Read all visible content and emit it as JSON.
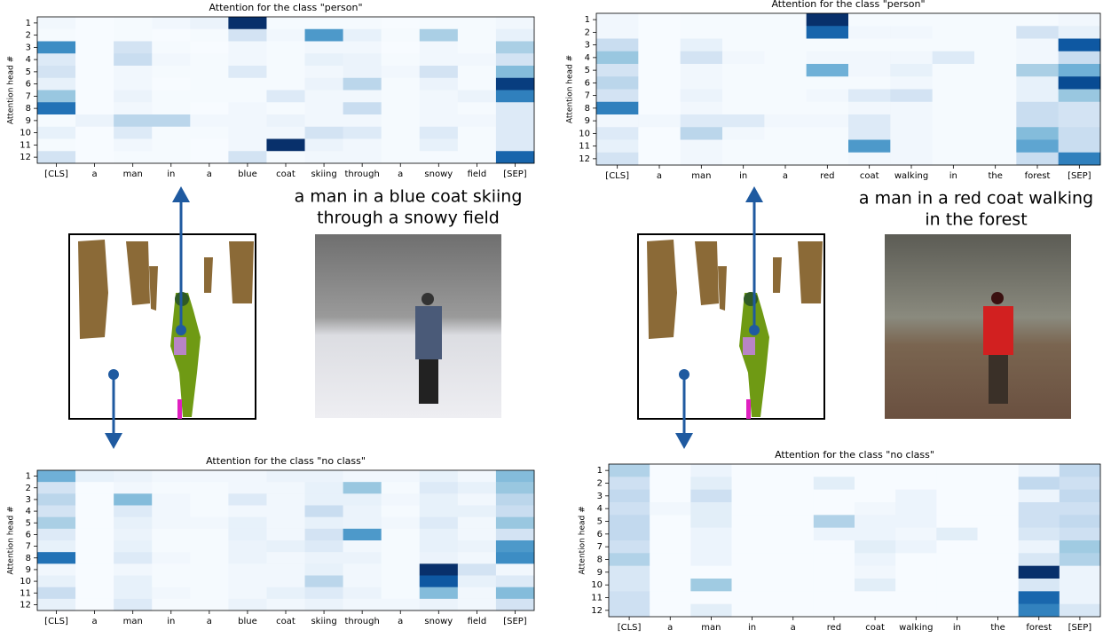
{
  "chart_data": [
    {
      "type": "heatmap",
      "title": "Attention for the class \"person\"",
      "ylabel": "Attention head #",
      "categories": [
        "[CLS]",
        "a",
        "man",
        "in",
        "a",
        "blue",
        "coat",
        "skiing",
        "through",
        "a",
        "snowy",
        "field",
        "[SEP]"
      ],
      "rows": [
        1,
        2,
        3,
        4,
        5,
        6,
        7,
        8,
        9,
        10,
        11,
        12
      ],
      "colormap": [
        "#f7fbff",
        "#deebf7",
        "#c6dbef",
        "#9ecae1",
        "#6baed6",
        "#4292c6",
        "#2171b5",
        "#08519c",
        "#08306b"
      ],
      "values": [
        [
          0.05,
          0.02,
          0.03,
          0.05,
          0.08,
          1,
          0.03,
          0.03,
          0.03,
          0.02,
          0.03,
          0.03,
          0.05
        ],
        [
          0.03,
          0.02,
          0.03,
          0.02,
          0.03,
          0.2,
          0.05,
          0.6,
          0.1,
          0.03,
          0.35,
          0.03,
          0.1
        ],
        [
          0.65,
          0.02,
          0.2,
          0.03,
          0.02,
          0.05,
          0.03,
          0.05,
          0.05,
          0.02,
          0.05,
          0.03,
          0.35
        ],
        [
          0.15,
          0.02,
          0.25,
          0.05,
          0.03,
          0.05,
          0.03,
          0.1,
          0.08,
          0.03,
          0.05,
          0.05,
          0.2
        ],
        [
          0.2,
          0.02,
          0.05,
          0.03,
          0.03,
          0.15,
          0.03,
          0.05,
          0.08,
          0.05,
          0.2,
          0.03,
          0.45
        ],
        [
          0.1,
          0.02,
          0.05,
          0.02,
          0.03,
          0.03,
          0.03,
          0.08,
          0.3,
          0.03,
          0.08,
          0.03,
          0.95
        ],
        [
          0.4,
          0.02,
          0.08,
          0.03,
          0.03,
          0.03,
          0.15,
          0.05,
          0.05,
          0.03,
          0.05,
          0.08,
          0.7
        ],
        [
          0.75,
          0.02,
          0.05,
          0.03,
          0.02,
          0.05,
          0.03,
          0.05,
          0.25,
          0.03,
          0.05,
          0.03,
          0.15
        ],
        [
          0.03,
          0.08,
          0.3,
          0.3,
          0.05,
          0.05,
          0.08,
          0.05,
          0.05,
          0.03,
          0.05,
          0.05,
          0.15
        ],
        [
          0.1,
          0.02,
          0.15,
          0.03,
          0.03,
          0.05,
          0.05,
          0.2,
          0.15,
          0.03,
          0.15,
          0.03,
          0.15
        ],
        [
          0.03,
          0.02,
          0.05,
          0.03,
          0.02,
          0.05,
          1,
          0.08,
          0.05,
          0.03,
          0.1,
          0.03,
          0.15
        ],
        [
          0.2,
          0.02,
          0.03,
          0.03,
          0.02,
          0.2,
          0.03,
          0.05,
          0.05,
          0.03,
          0.03,
          0.03,
          0.8
        ]
      ]
    },
    {
      "type": "heatmap",
      "title": "Attention for the class \"no class\"",
      "ylabel": "Attention head #",
      "categories": [
        "[CLS]",
        "a",
        "man",
        "in",
        "a",
        "blue",
        "coat",
        "skiing",
        "through",
        "a",
        "snowy",
        "field",
        "[SEP]"
      ],
      "rows": [
        1,
        2,
        3,
        4,
        5,
        6,
        7,
        8,
        9,
        10,
        11,
        12
      ],
      "colormap": [
        "#f7fbff",
        "#deebf7",
        "#c6dbef",
        "#9ecae1",
        "#6baed6",
        "#4292c6",
        "#2171b5",
        "#08519c",
        "#08306b"
      ],
      "values": [
        [
          0.5,
          0.1,
          0.08,
          0.05,
          0.05,
          0.05,
          0.08,
          0.08,
          0.05,
          0.05,
          0.1,
          0.05,
          0.45
        ],
        [
          0.2,
          0.02,
          0.05,
          0.03,
          0.03,
          0.05,
          0.05,
          0.1,
          0.4,
          0.03,
          0.15,
          0.1,
          0.4
        ],
        [
          0.3,
          0.02,
          0.45,
          0.05,
          0.03,
          0.15,
          0.05,
          0.1,
          0.1,
          0.05,
          0.1,
          0.05,
          0.3
        ],
        [
          0.2,
          0.02,
          0.15,
          0.05,
          0.03,
          0.05,
          0.05,
          0.25,
          0.08,
          0.03,
          0.1,
          0.1,
          0.25
        ],
        [
          0.35,
          0.02,
          0.1,
          0.05,
          0.05,
          0.1,
          0.05,
          0.1,
          0.08,
          0.05,
          0.15,
          0.05,
          0.4
        ],
        [
          0.15,
          0.02,
          0.08,
          0.03,
          0.03,
          0.1,
          0.05,
          0.2,
          0.6,
          0.03,
          0.1,
          0.05,
          0.2
        ],
        [
          0.1,
          0.02,
          0.1,
          0.03,
          0.03,
          0.08,
          0.1,
          0.15,
          0.05,
          0.03,
          0.1,
          0.08,
          0.6
        ],
        [
          0.75,
          0.02,
          0.15,
          0.05,
          0.03,
          0.08,
          0.05,
          0.08,
          0.08,
          0.03,
          0.08,
          0.05,
          0.65
        ],
        [
          0.05,
          0.02,
          0.05,
          0.03,
          0.03,
          0.05,
          0.05,
          0.1,
          0.05,
          0.03,
          1,
          0.2,
          0.05
        ],
        [
          0.1,
          0.02,
          0.1,
          0.03,
          0.03,
          0.05,
          0.05,
          0.3,
          0.05,
          0.03,
          0.85,
          0.1,
          0.15
        ],
        [
          0.25,
          0.02,
          0.1,
          0.05,
          0.03,
          0.05,
          0.1,
          0.15,
          0.08,
          0.03,
          0.45,
          0.05,
          0.45
        ],
        [
          0.1,
          0.02,
          0.15,
          0.03,
          0.03,
          0.08,
          0.05,
          0.08,
          0.05,
          0.05,
          0.08,
          0.05,
          0.2
        ]
      ]
    },
    {
      "type": "heatmap",
      "title": "Attention for the class \"person\"",
      "ylabel": "Attention head #",
      "categories": [
        "[CLS]",
        "a",
        "man",
        "in",
        "a",
        "red",
        "coat",
        "walking",
        "in",
        "the",
        "forest",
        "[SEP]"
      ],
      "rows": [
        1,
        2,
        3,
        4,
        5,
        6,
        7,
        8,
        9,
        10,
        11,
        12
      ],
      "colormap": [
        "#f7fbff",
        "#deebf7",
        "#c6dbef",
        "#9ecae1",
        "#6baed6",
        "#4292c6",
        "#2171b5",
        "#08519c",
        "#08306b"
      ],
      "values": [
        [
          0.05,
          0.02,
          0.03,
          0.03,
          0.03,
          1,
          0.03,
          0.03,
          0.03,
          0.03,
          0.03,
          0.05
        ],
        [
          0.05,
          0.02,
          0.03,
          0.03,
          0.03,
          0.8,
          0.05,
          0.05,
          0.03,
          0.03,
          0.2,
          0.1
        ],
        [
          0.25,
          0.02,
          0.1,
          0.03,
          0.03,
          0.03,
          0.03,
          0.03,
          0.03,
          0.03,
          0.05,
          0.85
        ],
        [
          0.4,
          0.02,
          0.2,
          0.05,
          0.03,
          0.05,
          0.05,
          0.05,
          0.15,
          0.03,
          0.05,
          0.25
        ],
        [
          0.2,
          0.02,
          0.05,
          0.03,
          0.03,
          0.5,
          0.05,
          0.1,
          0.03,
          0.03,
          0.35,
          0.5
        ],
        [
          0.3,
          0.02,
          0.05,
          0.03,
          0.03,
          0.03,
          0.03,
          0.05,
          0.03,
          0.03,
          0.1,
          0.9
        ],
        [
          0.2,
          0.02,
          0.08,
          0.03,
          0.03,
          0.05,
          0.15,
          0.2,
          0.03,
          0.03,
          0.1,
          0.4
        ],
        [
          0.7,
          0.02,
          0.05,
          0.03,
          0.03,
          0.03,
          0.05,
          0.05,
          0.03,
          0.03,
          0.25,
          0.2
        ],
        [
          0.05,
          0.05,
          0.15,
          0.15,
          0.05,
          0.05,
          0.15,
          0.05,
          0.03,
          0.03,
          0.25,
          0.2
        ],
        [
          0.15,
          0.02,
          0.3,
          0.05,
          0.03,
          0.03,
          0.15,
          0.05,
          0.03,
          0.03,
          0.45,
          0.25
        ],
        [
          0.1,
          0.02,
          0.05,
          0.03,
          0.03,
          0.03,
          0.6,
          0.05,
          0.03,
          0.03,
          0.55,
          0.25
        ],
        [
          0.2,
          0.02,
          0.05,
          0.03,
          0.03,
          0.03,
          0.05,
          0.05,
          0.03,
          0.03,
          0.25,
          0.7
        ]
      ]
    },
    {
      "type": "heatmap",
      "title": "Attention for the class \"no class\"",
      "ylabel": "Attention head #",
      "categories": [
        "[CLS]",
        "a",
        "man",
        "in",
        "a",
        "red",
        "coat",
        "walking",
        "in",
        "the",
        "forest",
        "[SEP]"
      ],
      "rows": [
        1,
        2,
        3,
        4,
        5,
        6,
        7,
        8,
        9,
        10,
        11,
        12
      ],
      "colormap": [
        "#f7fbff",
        "#deebf7",
        "#c6dbef",
        "#9ecae1",
        "#6baed6",
        "#4292c6",
        "#2171b5",
        "#08519c",
        "#08306b"
      ],
      "values": [
        [
          0.35,
          0.05,
          0.1,
          0.05,
          0.05,
          0.05,
          0.05,
          0.05,
          0.05,
          0.05,
          0.1,
          0.3
        ],
        [
          0.25,
          0.05,
          0.15,
          0.05,
          0.05,
          0.15,
          0.05,
          0.05,
          0.05,
          0.05,
          0.3,
          0.25
        ],
        [
          0.3,
          0.05,
          0.25,
          0.05,
          0.05,
          0.05,
          0.05,
          0.1,
          0.05,
          0.05,
          0.1,
          0.3
        ],
        [
          0.25,
          0.08,
          0.15,
          0.05,
          0.05,
          0.05,
          0.08,
          0.1,
          0.05,
          0.05,
          0.25,
          0.25
        ],
        [
          0.3,
          0.05,
          0.15,
          0.05,
          0.05,
          0.35,
          0.1,
          0.1,
          0.05,
          0.05,
          0.25,
          0.3
        ],
        [
          0.3,
          0.05,
          0.1,
          0.05,
          0.05,
          0.1,
          0.1,
          0.08,
          0.15,
          0.05,
          0.2,
          0.25
        ],
        [
          0.25,
          0.05,
          0.1,
          0.05,
          0.05,
          0.05,
          0.15,
          0.1,
          0.05,
          0.05,
          0.1,
          0.4
        ],
        [
          0.35,
          0.05,
          0.1,
          0.05,
          0.05,
          0.05,
          0.1,
          0.05,
          0.05,
          0.05,
          0.2,
          0.35
        ],
        [
          0.2,
          0.05,
          0.05,
          0.05,
          0.05,
          0.05,
          0.08,
          0.05,
          0.05,
          0.05,
          1,
          0.1
        ],
        [
          0.2,
          0.05,
          0.4,
          0.05,
          0.05,
          0.05,
          0.15,
          0.05,
          0.05,
          0.05,
          0.2,
          0.1
        ],
        [
          0.25,
          0.05,
          0.05,
          0.05,
          0.05,
          0.05,
          0.05,
          0.05,
          0.05,
          0.05,
          0.8,
          0.1
        ],
        [
          0.25,
          0.05,
          0.15,
          0.05,
          0.05,
          0.05,
          0.05,
          0.05,
          0.05,
          0.05,
          0.7,
          0.2
        ]
      ]
    }
  ],
  "captions": [
    [
      "a man in a blue coat skiing",
      "through a snowy field"
    ],
    [
      "a man in a red coat walking",
      "in the forest"
    ]
  ]
}
